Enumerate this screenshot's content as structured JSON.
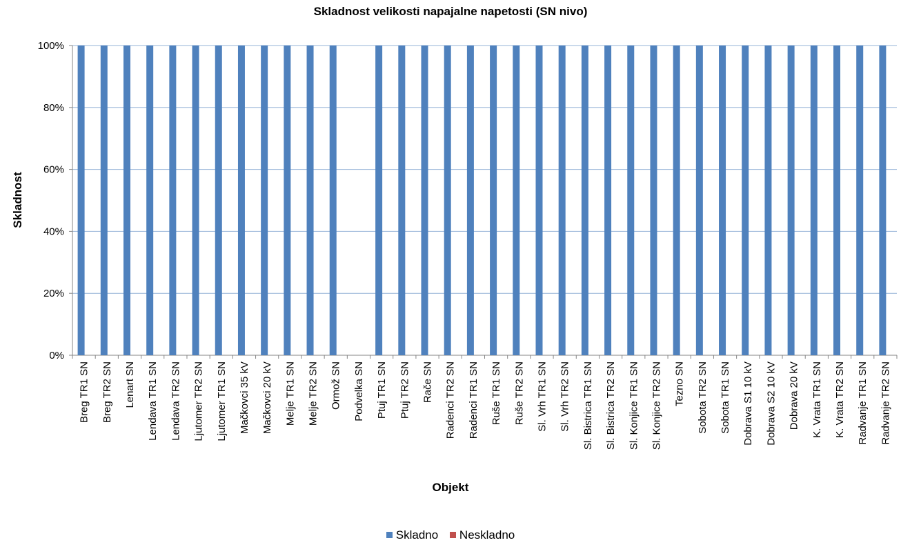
{
  "chart_data": {
    "type": "bar",
    "title": "Skladnost velikosti napajalne napetosti (SN nivo)",
    "xlabel": "Objekt",
    "ylabel": "Skladnost",
    "ylim": [
      0,
      100
    ],
    "yticks": [
      "0%",
      "20%",
      "40%",
      "60%",
      "80%",
      "100%"
    ],
    "grid": true,
    "legend_position": "bottom",
    "categories": [
      "Breg TR1 SN",
      "Breg TR2 SN",
      "Lenart SN",
      "Lendava TR1 SN",
      "Lendava TR2 SN",
      "Ljutomer TR2 SN",
      "Ljutomer TR1 SN",
      "Mačkovci 35 kV",
      "Mačkovci 20 kV",
      "Melje TR1 SN",
      "Melje TR2 SN",
      "Ormož SN",
      "Podvelka SN",
      "Ptuj TR1 SN",
      "Ptuj TR2 SN",
      "Rače SN",
      "Radenci TR2 SN",
      "Radenci TR1 SN",
      "Ruše TR1 SN",
      "Ruše TR2 SN",
      "Sl. Vrh TR1 SN",
      "Sl. Vrh TR2 SN",
      "Sl. Bistrica TR1 SN",
      "Sl. Bistrica TR2 SN",
      "Sl. Konjice TR1 SN",
      "Sl. Konjice TR2 SN",
      "Tezno SN",
      "Sobota TR2 SN",
      "Sobota TR1 SN",
      "Dobrava S1 10 kV",
      "Dobrava S2 10 kV",
      "Dobrava 20 kV",
      "K. Vrata TR1 SN",
      "K. Vrata TR2 SN",
      "Radvanje TR1 SN",
      "Radvanje TR2 SN"
    ],
    "series": [
      {
        "name": "Skladno",
        "color": "#4f81bd",
        "values": [
          100,
          100,
          100,
          100,
          100,
          100,
          100,
          100,
          100,
          100,
          100,
          100,
          0,
          100,
          100,
          100,
          100,
          100,
          100,
          100,
          100,
          100,
          100,
          100,
          100,
          100,
          100,
          100,
          100,
          100,
          100,
          100,
          100,
          100,
          100,
          100
        ]
      },
      {
        "name": "Neskladno",
        "color": "#c0504d",
        "values": [
          0,
          0,
          0,
          0,
          0,
          0,
          0,
          0,
          0,
          0,
          0,
          0,
          0,
          0,
          0,
          0,
          0,
          0,
          0,
          0,
          0,
          0,
          0,
          0,
          0,
          0,
          0,
          0,
          0,
          0,
          0,
          0,
          0,
          0,
          0,
          0
        ]
      }
    ]
  }
}
